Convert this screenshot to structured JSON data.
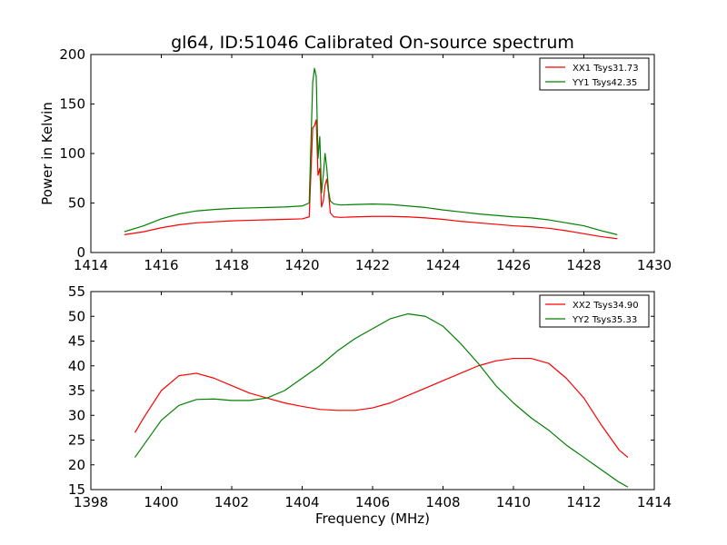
{
  "figure": {
    "title": "gl64, ID:51046 Calibrated On-source spectrum"
  },
  "chart_data": [
    {
      "type": "line",
      "title": "gl64, ID:51046 Calibrated On-source spectrum",
      "xlabel": "",
      "ylabel": "Power in Kelvin",
      "xlim": [
        1414,
        1430
      ],
      "ylim": [
        0,
        200
      ],
      "xticks": [
        1414,
        1416,
        1418,
        1420,
        1422,
        1424,
        1426,
        1428,
        1430
      ],
      "yticks": [
        0,
        50,
        100,
        150,
        200
      ],
      "legend_position": "top-right",
      "grid": false,
      "series": [
        {
          "name": "XX1 Tsys31.73",
          "color": "#ff0000",
          "x": [
            1414.95,
            1415.5,
            1416,
            1416.5,
            1417,
            1417.5,
            1418,
            1418.5,
            1419,
            1419.5,
            1420,
            1420.2,
            1420.3,
            1420.35,
            1420.4,
            1420.45,
            1420.5,
            1420.55,
            1420.6,
            1420.65,
            1420.7,
            1420.75,
            1420.8,
            1420.9,
            1421.1,
            1421.5,
            1422,
            1422.5,
            1423,
            1423.5,
            1424,
            1424.5,
            1425,
            1425.5,
            1426,
            1426.5,
            1427,
            1427.5,
            1428,
            1428.5,
            1428.95
          ],
          "y": [
            18,
            21,
            25,
            28,
            30,
            31,
            32,
            32.5,
            33,
            33.5,
            34,
            36,
            126,
            128,
            134,
            78,
            85,
            46,
            52,
            68,
            74,
            60,
            40,
            36,
            35.5,
            36,
            36.5,
            36.5,
            36,
            35,
            33.5,
            31.5,
            30,
            28.5,
            27,
            26,
            24.5,
            22,
            19,
            16,
            14
          ]
        },
        {
          "name": "YY1 Tsys42.35",
          "color": "#008000",
          "x": [
            1414.95,
            1415.5,
            1416,
            1416.5,
            1417,
            1417.5,
            1418,
            1418.5,
            1419,
            1419.5,
            1420,
            1420.2,
            1420.3,
            1420.35,
            1420.4,
            1420.45,
            1420.5,
            1420.55,
            1420.6,
            1420.65,
            1420.7,
            1420.75,
            1420.8,
            1420.9,
            1421.1,
            1421.5,
            1422,
            1422.5,
            1423,
            1423.5,
            1424,
            1424.5,
            1425,
            1425.5,
            1426,
            1426.5,
            1427,
            1427.5,
            1428,
            1428.5,
            1428.95
          ],
          "y": [
            21,
            27,
            34,
            39,
            42,
            43.5,
            44.5,
            45,
            45.5,
            46,
            47,
            50,
            172,
            186,
            178,
            95,
            117,
            60,
            78,
            100,
            85,
            62,
            52,
            49,
            48,
            48.5,
            49,
            48.5,
            47,
            45.5,
            43,
            41,
            39,
            37.5,
            36,
            35,
            33,
            30,
            27,
            22,
            18
          ]
        }
      ]
    },
    {
      "type": "line",
      "title": "",
      "xlabel": "Frequency (MHz)",
      "ylabel": "",
      "xlim": [
        1398,
        1414
      ],
      "ylim": [
        15,
        55
      ],
      "xticks": [
        1398,
        1400,
        1402,
        1404,
        1406,
        1408,
        1410,
        1412,
        1414
      ],
      "yticks": [
        15,
        20,
        25,
        30,
        35,
        40,
        45,
        50,
        55
      ],
      "legend_position": "top-right",
      "grid": false,
      "series": [
        {
          "name": "XX2 Tsys34.90",
          "color": "#ff0000",
          "x": [
            1399.25,
            1399.5,
            1400,
            1400.5,
            1401,
            1401.5,
            1402,
            1402.5,
            1403,
            1403.5,
            1404,
            1404.5,
            1405,
            1405.5,
            1406,
            1406.5,
            1407,
            1407.5,
            1408,
            1408.5,
            1409,
            1409.5,
            1410,
            1410.5,
            1411,
            1411.5,
            1412,
            1412.5,
            1413,
            1413.25
          ],
          "y": [
            26.5,
            29.5,
            35,
            38,
            38.5,
            37.5,
            36,
            34.5,
            33.5,
            32.5,
            31.8,
            31.2,
            31,
            31,
            31.5,
            32.5,
            34,
            35.5,
            37,
            38.5,
            40,
            41,
            41.5,
            41.5,
            40.5,
            37.5,
            33.5,
            28,
            23,
            21.5
          ]
        },
        {
          "name": "YY2 Tsys35.33",
          "color": "#008000",
          "x": [
            1399.25,
            1399.5,
            1400,
            1400.5,
            1401,
            1401.5,
            1402,
            1402.5,
            1403,
            1403.5,
            1404,
            1404.5,
            1405,
            1405.5,
            1406,
            1406.5,
            1407,
            1407.5,
            1408,
            1408.5,
            1409,
            1409.5,
            1410,
            1410.5,
            1411,
            1411.5,
            1412,
            1412.5,
            1413,
            1413.25
          ],
          "y": [
            21.5,
            24,
            29,
            32,
            33.2,
            33.3,
            33,
            33,
            33.5,
            35,
            37.5,
            40,
            43,
            45.5,
            47.5,
            49.5,
            50.5,
            50,
            48,
            44.5,
            40.5,
            36,
            32.5,
            29.5,
            27,
            24,
            21.5,
            19,
            16.5,
            15.5
          ]
        }
      ]
    }
  ]
}
